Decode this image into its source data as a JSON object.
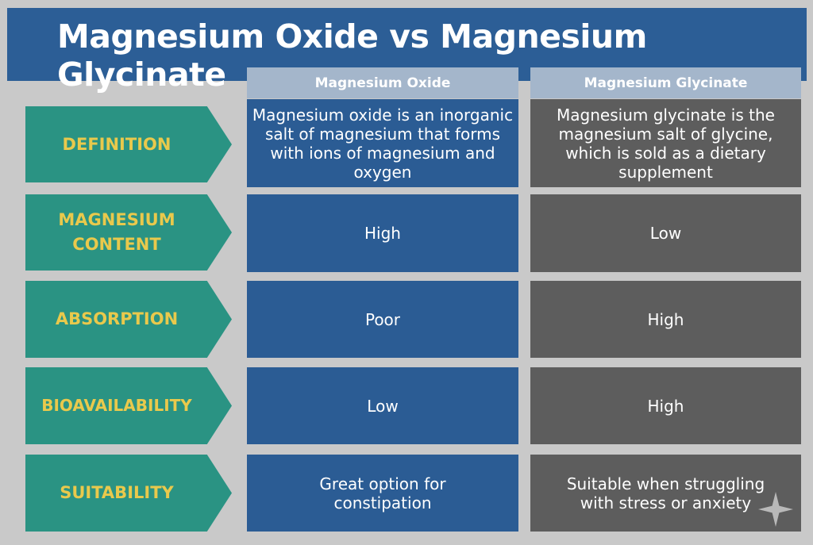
{
  "title": "Magnesium Oxide vs Magnesium Glycinate",
  "columns": [
    "Magnesium Oxide",
    "Magnesium Glycinate"
  ],
  "rows": [
    {
      "label": "DEFINITION",
      "oxide": "Magnesium oxide is an inorganic salt of magnesium that forms with ions of magnesium and oxygen",
      "glycinate": "Magnesium glycinate is the magnesium salt of glycine, which is sold as a dietary supplement"
    },
    {
      "label": "MAGNESIUM CONTENT",
      "oxide": "High",
      "glycinate": "Low"
    },
    {
      "label": "ABSORPTION",
      "oxide": "Poor",
      "glycinate": "High"
    },
    {
      "label": "BIOAVAILABILITY",
      "oxide": "Low",
      "glycinate": "High"
    },
    {
      "label": "SUITABILITY",
      "oxide": "Great option for constipation",
      "glycinate": "Suitable when struggling with stress or anxiety"
    }
  ],
  "colors": {
    "banner": "#2c5e96",
    "oxide": "#2b5c94",
    "glycinate": "#5d5d5d",
    "label_bg": "#2a9383",
    "label_text": "#e9c94c"
  }
}
